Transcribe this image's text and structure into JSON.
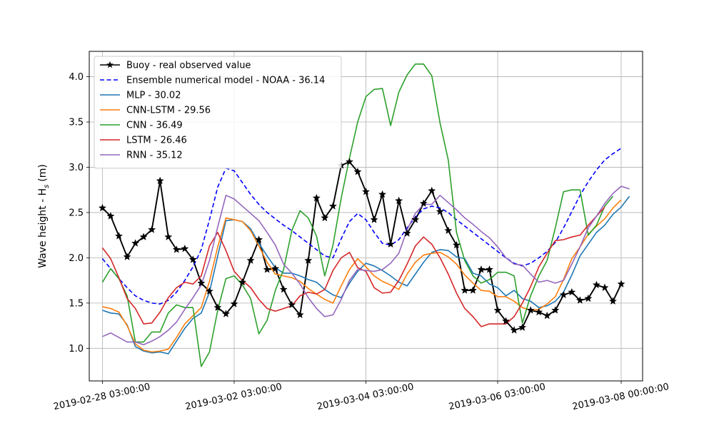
{
  "chart_data": {
    "type": "line",
    "title": "",
    "xlabel": "",
    "ylabel": "Wave height - H",
    "ylabel_sub": "s",
    "ylabel_unit": "(m)",
    "xlim": [
      -0.2,
      8.2
    ],
    "ylim": [
      0.64,
      4.28
    ],
    "x_ticks": [
      {
        "value": 0,
        "label": "2019-02-28 03:00:00"
      },
      {
        "value": 2,
        "label": "2019-03-02 03:00:00"
      },
      {
        "value": 4,
        "label": "2019-03-04 03:00:00"
      },
      {
        "value": 6,
        "label": "2019-03-06 03:00:00"
      },
      {
        "value": 7.875,
        "label": "2019-03-08 00:00:00"
      }
    ],
    "y_ticks": [
      {
        "value": 1.0,
        "label": "1.0"
      },
      {
        "value": 1.5,
        "label": "1.5"
      },
      {
        "value": 2.0,
        "label": "2.0"
      },
      {
        "value": 2.5,
        "label": "2.5"
      },
      {
        "value": 3.0,
        "label": "3.0"
      },
      {
        "value": 3.5,
        "label": "3.5"
      },
      {
        "value": 4.0,
        "label": "4.0"
      }
    ],
    "grid": true,
    "legend_position": "top-left",
    "x_step_days": 0.125,
    "series": [
      {
        "name": "Buoy - real observed value",
        "color": "#000000",
        "style": "solid",
        "marker": "star",
        "values": [
          2.55,
          2.46,
          2.24,
          2.01,
          2.16,
          2.23,
          2.31,
          2.85,
          2.23,
          2.09,
          2.1,
          1.98,
          1.72,
          1.63,
          1.45,
          1.38,
          1.49,
          1.73,
          1.97,
          2.2,
          1.87,
          1.88,
          1.65,
          1.48,
          1.37,
          1.97,
          2.66,
          2.44,
          2.57,
          3.02,
          3.06,
          2.95,
          2.73,
          2.42,
          2.7,
          2.15,
          2.63,
          2.27,
          2.42,
          2.6,
          2.74,
          2.51,
          2.3,
          2.14,
          1.64,
          1.64,
          1.87,
          1.87,
          1.42,
          1.3,
          1.2,
          1.23,
          1.42,
          1.4,
          1.36,
          1.42,
          1.59,
          1.62,
          1.53,
          1.55,
          1.7,
          1.67,
          1.52,
          1.71
        ]
      },
      {
        "name": "Ensemble numerical model - NOAA - 36.14",
        "color": "#0000ff",
        "style": "dashed",
        "marker": "none",
        "values": [
          1.99,
          1.88,
          1.77,
          1.67,
          1.58,
          1.53,
          1.5,
          1.49,
          1.53,
          1.62,
          1.75,
          1.9,
          2.09,
          2.42,
          2.78,
          2.99,
          2.96,
          2.83,
          2.7,
          2.59,
          2.5,
          2.43,
          2.36,
          2.3,
          2.23,
          2.16,
          2.09,
          2.02,
          2.0,
          2.21,
          2.4,
          2.49,
          2.42,
          2.28,
          2.16,
          2.14,
          2.2,
          2.33,
          2.45,
          2.54,
          2.57,
          2.55,
          2.5,
          2.42,
          2.35,
          2.28,
          2.21,
          2.14,
          2.07,
          2.0,
          1.94,
          1.91,
          1.94,
          2.0,
          2.07,
          2.17,
          2.33,
          2.51,
          2.69,
          2.84,
          2.97,
          3.08,
          3.15,
          3.21
        ]
      },
      {
        "name": "MLP - 30.02",
        "color": "#1f77b4",
        "style": "solid",
        "marker": "none",
        "values": [
          1.42,
          1.39,
          1.38,
          1.26,
          1.02,
          0.97,
          0.95,
          0.96,
          0.94,
          1.08,
          1.22,
          1.33,
          1.39,
          1.62,
          2.02,
          2.41,
          2.42,
          2.4,
          2.32,
          2.16,
          2.02,
          1.89,
          1.83,
          1.83,
          1.8,
          1.76,
          1.73,
          1.65,
          1.59,
          1.56,
          1.72,
          1.85,
          1.94,
          1.91,
          1.86,
          1.8,
          1.73,
          1.69,
          1.82,
          1.95,
          2.06,
          2.09,
          2.08,
          2.01,
          1.99,
          1.83,
          1.8,
          1.71,
          1.67,
          1.58,
          1.64,
          1.55,
          1.52,
          1.45,
          1.47,
          1.52,
          1.62,
          1.81,
          2.02,
          2.15,
          2.28,
          2.36,
          2.48,
          2.56,
          2.68
        ]
      },
      {
        "name": "CNN-LSTM - 29.56",
        "color": "#ff7f0e",
        "style": "solid",
        "marker": "none",
        "values": [
          1.46,
          1.44,
          1.4,
          1.25,
          1.05,
          0.98,
          0.96,
          0.97,
          0.99,
          1.12,
          1.27,
          1.36,
          1.45,
          1.74,
          2.12,
          2.44,
          2.42,
          2.4,
          2.3,
          2.13,
          1.95,
          1.82,
          1.8,
          1.78,
          1.74,
          1.66,
          1.6,
          1.54,
          1.5,
          1.69,
          1.87,
          1.99,
          1.9,
          1.8,
          1.74,
          1.7,
          1.65,
          1.82,
          1.95,
          2.03,
          2.05,
          2.06,
          2.01,
          1.93,
          1.81,
          1.72,
          1.64,
          1.63,
          1.57,
          1.57,
          1.52,
          1.45,
          1.42,
          1.43,
          1.49,
          1.57,
          1.76,
          1.99,
          2.12,
          2.26,
          2.35,
          2.43,
          2.55,
          2.64
        ]
      },
      {
        "name": "CNN - 36.49",
        "color": "#2ca02c",
        "style": "solid",
        "marker": "none",
        "values": [
          1.73,
          1.88,
          1.77,
          1.58,
          1.07,
          1.07,
          1.18,
          1.18,
          1.39,
          1.48,
          1.45,
          1.45,
          0.8,
          0.96,
          1.42,
          1.77,
          1.8,
          1.7,
          1.55,
          1.16,
          1.31,
          1.64,
          1.87,
          2.3,
          2.52,
          2.44,
          2.24,
          1.8,
          2.14,
          2.66,
          3.1,
          3.5,
          3.78,
          3.86,
          3.87,
          3.46,
          3.83,
          4.02,
          4.14,
          4.14,
          4.01,
          3.49,
          3.08,
          2.28,
          1.97,
          1.8,
          1.72,
          1.76,
          1.84,
          1.84,
          1.8,
          1.28,
          1.58,
          1.8,
          1.97,
          2.33,
          2.73,
          2.75,
          2.75,
          2.25,
          2.36,
          2.57,
          2.68
        ]
      },
      {
        "name": "LSTM - 26.46",
        "color": "#d62728",
        "style": "solid",
        "marker": "none",
        "values": [
          2.11,
          1.99,
          1.78,
          1.55,
          1.44,
          1.27,
          1.28,
          1.4,
          1.56,
          1.67,
          1.73,
          1.71,
          1.8,
          2.13,
          2.28,
          2.08,
          1.85,
          1.75,
          1.67,
          1.54,
          1.44,
          1.41,
          1.44,
          1.47,
          1.58,
          1.62,
          1.6,
          1.65,
          1.86,
          2.0,
          2.06,
          1.89,
          1.85,
          1.67,
          1.61,
          1.62,
          1.75,
          1.93,
          2.13,
          2.23,
          2.15,
          2.0,
          1.82,
          1.61,
          1.44,
          1.35,
          1.24,
          1.27,
          1.27,
          1.27,
          1.35,
          1.5,
          1.68,
          1.9,
          2.05,
          2.19,
          2.2,
          2.23,
          2.25,
          2.36,
          2.46,
          2.56
        ]
      },
      {
        "name": "RNN - 35.12",
        "color": "#9467bd",
        "style": "solid",
        "marker": "none",
        "values": [
          1.13,
          1.17,
          1.12,
          1.07,
          1.07,
          1.04,
          1.08,
          1.13,
          1.2,
          1.29,
          1.43,
          1.56,
          1.7,
          1.97,
          2.34,
          2.69,
          2.65,
          2.57,
          2.49,
          2.41,
          2.28,
          2.14,
          1.93,
          1.83,
          1.71,
          1.56,
          1.44,
          1.35,
          1.37,
          1.54,
          1.75,
          1.87,
          1.86,
          1.85,
          1.87,
          1.94,
          2.05,
          2.31,
          2.49,
          2.59,
          2.59,
          2.69,
          2.61,
          2.53,
          2.44,
          2.37,
          2.29,
          2.22,
          2.12,
          2.0,
          1.93,
          1.92,
          1.82,
          1.73,
          1.75,
          1.72,
          1.75,
          1.93,
          2.12,
          2.33,
          2.46,
          2.6,
          2.71,
          2.79,
          2.76
        ]
      }
    ]
  }
}
